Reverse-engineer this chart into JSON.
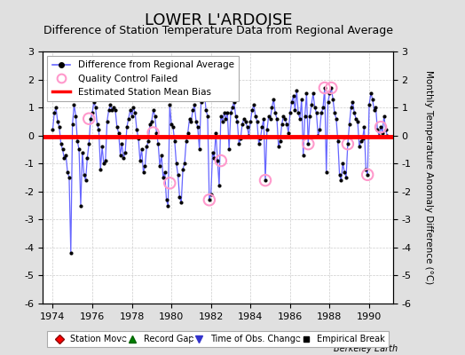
{
  "title": "LOWER L'ARDOISE",
  "subtitle": "Difference of Station Temperature Data from Regional Average",
  "ylabel": "Monthly Temperature Anomaly Difference (°C)",
  "xlabel_bottom": "Berkeley Earth",
  "bias_value": -0.05,
  "ylim": [
    -6,
    3
  ],
  "xlim": [
    1973.5,
    1991.2
  ],
  "xticks": [
    1974,
    1976,
    1978,
    1980,
    1982,
    1984,
    1986,
    1988,
    1990
  ],
  "yticks_left": [
    -6,
    -5,
    -4,
    -3,
    -2,
    -1,
    0,
    1,
    2,
    3
  ],
  "yticks_right": [
    -6,
    -5,
    -4,
    -3,
    -2,
    -1,
    0,
    1,
    2,
    3
  ],
  "background_color": "#e0e0e0",
  "plot_bg_color": "#ffffff",
  "line_color": "#6666ff",
  "dot_color": "#000000",
  "bias_color": "#ff0000",
  "qc_color": "#ff99cc",
  "title_fontsize": 13,
  "subtitle_fontsize": 9,
  "data": {
    "years": [
      1974.0,
      1974.083,
      1974.167,
      1974.25,
      1974.333,
      1974.417,
      1974.5,
      1974.583,
      1974.667,
      1974.75,
      1974.833,
      1974.917,
      1975.0,
      1975.083,
      1975.167,
      1975.25,
      1975.333,
      1975.417,
      1975.5,
      1975.583,
      1975.667,
      1975.75,
      1975.833,
      1975.917,
      1976.0,
      1976.083,
      1976.167,
      1976.25,
      1976.333,
      1976.417,
      1976.5,
      1976.583,
      1976.667,
      1976.75,
      1976.833,
      1976.917,
      1977.0,
      1977.083,
      1977.167,
      1977.25,
      1977.333,
      1977.417,
      1977.5,
      1977.583,
      1977.667,
      1977.75,
      1977.833,
      1977.917,
      1978.0,
      1978.083,
      1978.167,
      1978.25,
      1978.333,
      1978.417,
      1978.5,
      1978.583,
      1978.667,
      1978.75,
      1978.833,
      1978.917,
      1979.0,
      1979.083,
      1979.167,
      1979.25,
      1979.333,
      1979.417,
      1979.5,
      1979.583,
      1979.667,
      1979.75,
      1979.833,
      1979.917,
      1980.0,
      1980.083,
      1980.167,
      1980.25,
      1980.333,
      1980.417,
      1980.5,
      1980.583,
      1980.667,
      1980.75,
      1980.833,
      1980.917,
      1981.0,
      1981.083,
      1981.167,
      1981.25,
      1981.333,
      1981.417,
      1981.5,
      1981.583,
      1981.667,
      1981.75,
      1981.833,
      1981.917,
      1982.0,
      1982.083,
      1982.167,
      1982.25,
      1982.333,
      1982.417,
      1982.5,
      1982.583,
      1982.667,
      1982.75,
      1982.833,
      1982.917,
      1983.0,
      1983.083,
      1983.167,
      1983.25,
      1983.333,
      1983.417,
      1983.5,
      1983.583,
      1983.667,
      1983.75,
      1983.833,
      1983.917,
      1984.0,
      1984.083,
      1984.167,
      1984.25,
      1984.333,
      1984.417,
      1984.5,
      1984.583,
      1984.667,
      1984.75,
      1984.833,
      1984.917,
      1985.0,
      1985.083,
      1985.167,
      1985.25,
      1985.333,
      1985.417,
      1985.5,
      1985.583,
      1985.667,
      1985.75,
      1985.833,
      1985.917,
      1986.0,
      1986.083,
      1986.167,
      1986.25,
      1986.333,
      1986.417,
      1986.5,
      1986.583,
      1986.667,
      1986.75,
      1986.833,
      1986.917,
      1987.0,
      1987.083,
      1987.167,
      1987.25,
      1987.333,
      1987.417,
      1987.5,
      1987.583,
      1987.667,
      1987.75,
      1987.833,
      1987.917,
      1988.0,
      1988.083,
      1988.167,
      1988.25,
      1988.333,
      1988.417,
      1988.5,
      1988.583,
      1988.667,
      1988.75,
      1988.833,
      1988.917,
      1989.0,
      1989.083,
      1989.167,
      1989.25,
      1989.333,
      1989.417,
      1989.5,
      1989.583,
      1989.667,
      1989.75,
      1989.833,
      1989.917,
      1990.0,
      1990.083,
      1990.167,
      1990.25,
      1990.333,
      1990.417,
      1990.5,
      1990.583,
      1990.667,
      1990.75,
      1990.833,
      1990.917
    ],
    "values": [
      0.2,
      0.8,
      1.0,
      0.5,
      0.3,
      -0.3,
      -0.5,
      -0.8,
      -0.7,
      -1.3,
      -1.5,
      -4.2,
      0.4,
      1.1,
      0.7,
      -0.2,
      -0.5,
      -2.5,
      -0.6,
      -1.4,
      -1.6,
      -0.8,
      -0.3,
      0.6,
      0.8,
      1.2,
      1.0,
      0.4,
      0.2,
      -1.2,
      -0.4,
      -1.0,
      -0.9,
      0.5,
      0.9,
      1.1,
      0.9,
      1.0,
      0.9,
      0.3,
      0.1,
      -0.7,
      -0.3,
      -0.8,
      -0.6,
      0.3,
      0.6,
      0.9,
      0.7,
      1.0,
      0.8,
      0.2,
      -0.1,
      -0.9,
      -0.5,
      -1.3,
      -1.1,
      -0.4,
      -0.2,
      0.4,
      0.5,
      0.9,
      0.7,
      0.1,
      -0.3,
      -1.1,
      -0.7,
      -1.5,
      -1.3,
      -2.3,
      -2.5,
      1.1,
      0.4,
      0.3,
      -0.2,
      -1.0,
      -1.4,
      -2.2,
      -2.4,
      -1.2,
      -1.0,
      -0.2,
      0.1,
      0.6,
      0.5,
      0.9,
      1.1,
      0.5,
      0.3,
      -0.5,
      1.2,
      1.5,
      1.6,
      0.9,
      0.7,
      -2.3,
      -2.1,
      -0.6,
      -0.8,
      0.1,
      -0.9,
      -1.8,
      0.7,
      0.5,
      0.8,
      0.6,
      0.8,
      -0.5,
      0.8,
      1.0,
      1.2,
      0.7,
      0.5,
      -0.3,
      -0.1,
      0.4,
      0.6,
      0.5,
      0.3,
      0.0,
      0.5,
      0.9,
      1.1,
      0.7,
      0.5,
      -0.3,
      -0.1,
      0.3,
      0.6,
      -1.6,
      0.2,
      0.7,
      0.6,
      1.0,
      1.3,
      0.8,
      0.6,
      -0.4,
      -0.2,
      0.4,
      0.7,
      0.6,
      0.4,
      0.1,
      0.8,
      1.2,
      1.4,
      0.9,
      1.6,
      0.8,
      0.6,
      1.3,
      -0.7,
      0.7,
      1.5,
      -0.3,
      0.7,
      1.1,
      1.5,
      1.0,
      0.8,
      0.0,
      0.2,
      0.8,
      1.0,
      1.7,
      -1.3,
      1.2,
      1.5,
      1.7,
      1.3,
      0.8,
      0.6,
      -0.2,
      -1.4,
      -1.6,
      -1.0,
      -1.3,
      -1.5,
      -0.3,
      0.4,
      1.0,
      1.2,
      0.8,
      0.6,
      0.5,
      -0.4,
      -0.2,
      -0.1,
      0.3,
      -1.2,
      -1.4,
      1.1,
      1.5,
      1.3,
      0.9,
      1.0,
      0.2,
      0.0,
      0.3,
      0.1,
      0.7,
      0.2,
      0.0
    ],
    "qc_failed": [
      [
        1975.833,
        0.6
      ],
      [
        1979.083,
        0.1
      ],
      [
        1979.917,
        -1.7
      ],
      [
        1981.917,
        -2.3
      ],
      [
        1982.5,
        -0.9
      ],
      [
        1984.75,
        -1.6
      ],
      [
        1986.917,
        -0.3
      ],
      [
        1987.75,
        1.7
      ],
      [
        1988.083,
        1.7
      ],
      [
        1988.917,
        -0.3
      ],
      [
        1989.917,
        -1.4
      ],
      [
        1990.583,
        0.3
      ]
    ]
  }
}
